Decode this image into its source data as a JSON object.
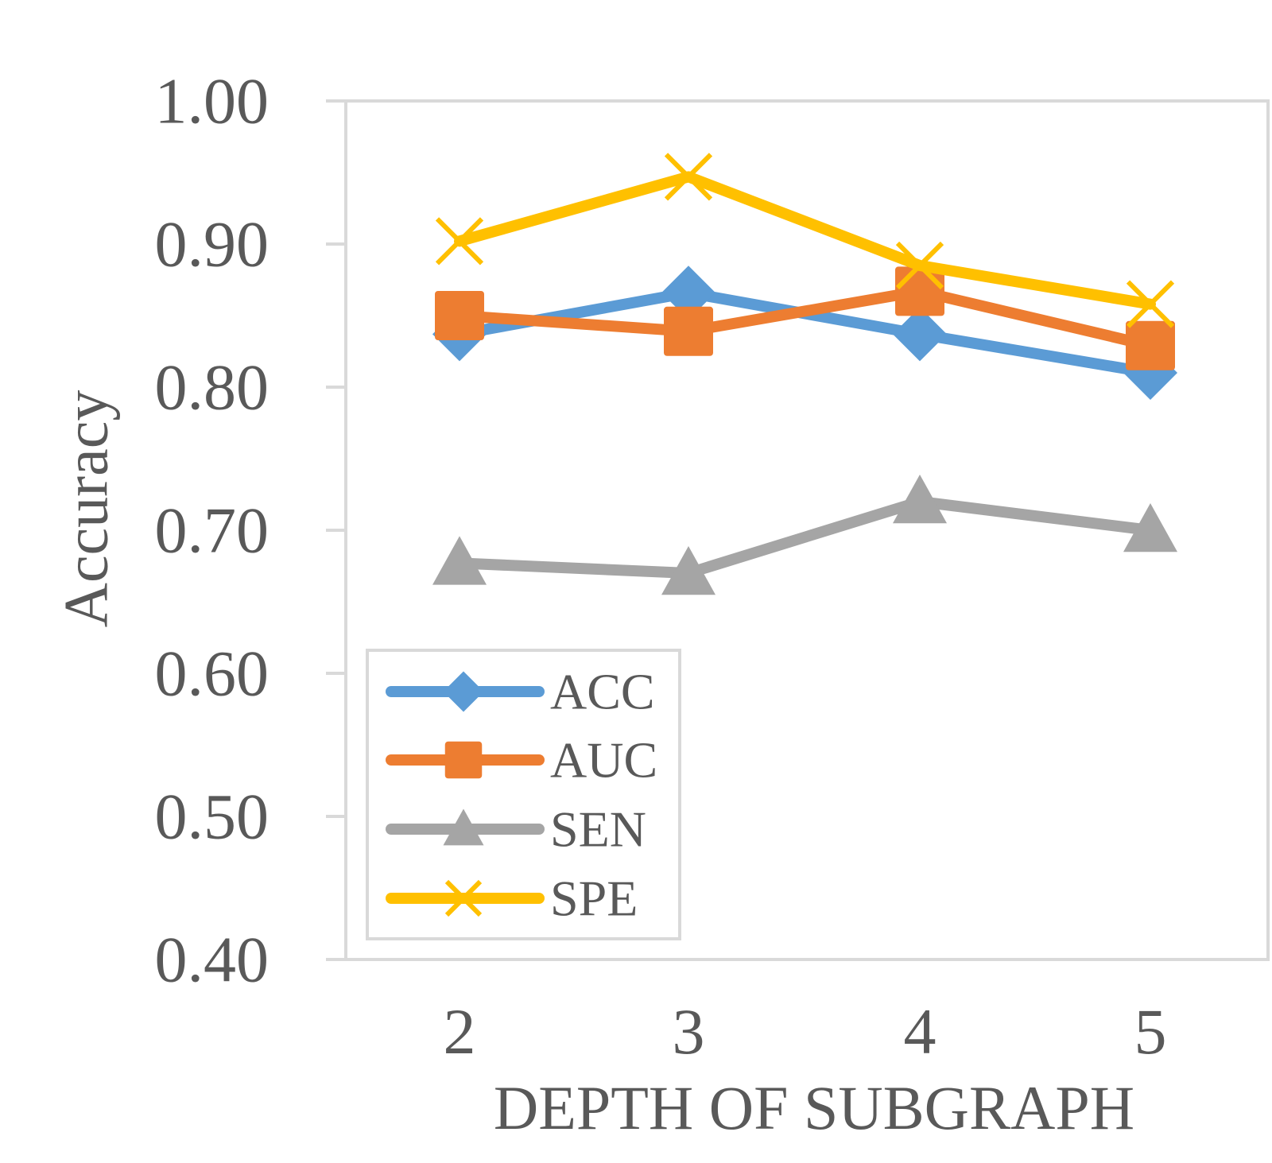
{
  "chart_data": {
    "type": "line",
    "title": "",
    "xlabel": "DEPTH OF SUBGRAPH",
    "ylabel": "Accuracy",
    "categories": [
      "2",
      "3",
      "4",
      "5"
    ],
    "ylim": [
      0.4,
      1.0
    ],
    "yticks": [
      "0.40",
      "0.50",
      "0.60",
      "0.70",
      "0.80",
      "0.90",
      "1.00"
    ],
    "grid": false,
    "legend_position": "bottom-left",
    "series": [
      {
        "name": "ACC",
        "color": "#5B9BD5",
        "marker": "diamond",
        "values": [
          0.837,
          0.866,
          0.837,
          0.81
        ]
      },
      {
        "name": "AUC",
        "color": "#ED7D31",
        "marker": "square",
        "values": [
          0.85,
          0.839,
          0.867,
          0.829
        ]
      },
      {
        "name": "SEN",
        "color": "#A5A5A5",
        "marker": "triangle",
        "values": [
          0.677,
          0.67,
          0.72,
          0.7
        ]
      },
      {
        "name": "SPE",
        "color": "#FFC000",
        "marker": "x",
        "values": [
          0.902,
          0.947,
          0.885,
          0.858
        ]
      }
    ]
  }
}
